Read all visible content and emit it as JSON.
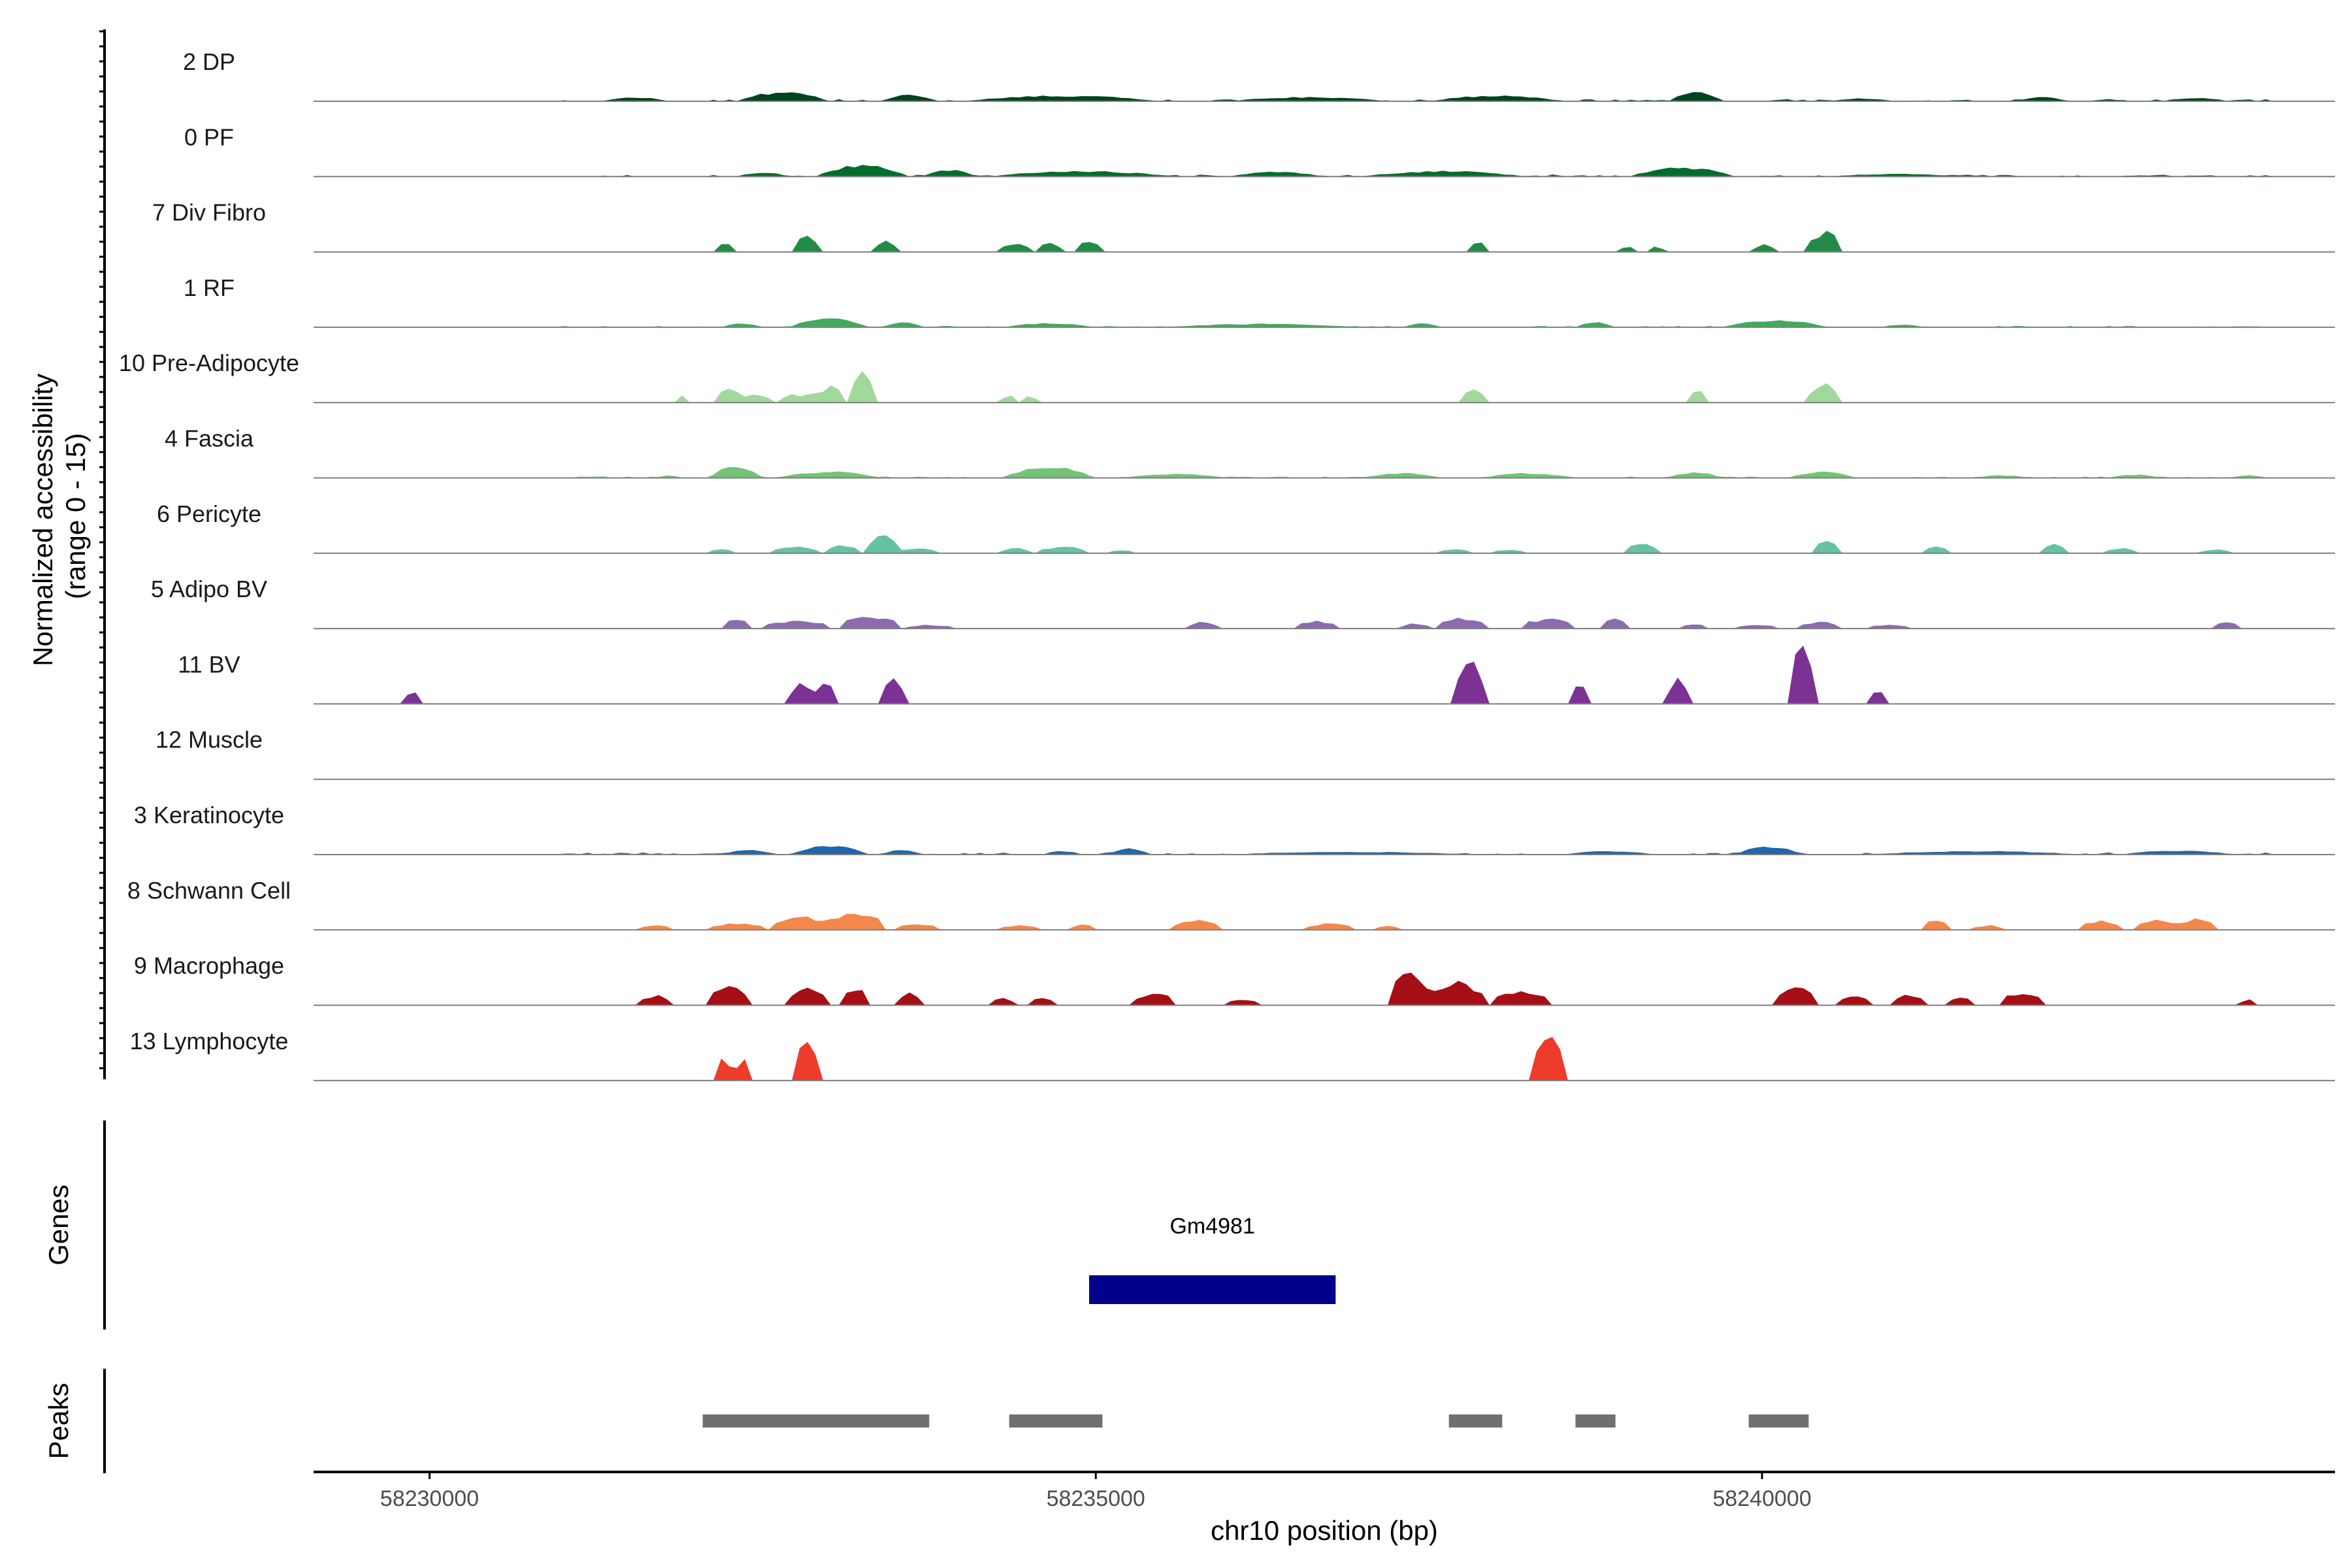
{
  "chart_data": {
    "type": "area",
    "title": "",
    "region": "chr10",
    "xlabel": "chr10 position (bp)",
    "ylabel": "Normalized accessibility\n(range 0 - 15)",
    "ylabel_lines": [
      "Normalized accessibility",
      "(range 0 - 15)"
    ],
    "xlim": [
      58229130,
      58244300
    ],
    "ylim": [
      0,
      15
    ],
    "x_ticks": [
      58230000,
      58235000,
      58240000
    ],
    "x_tick_labels": [
      "58230000",
      "58235000",
      "58240000"
    ],
    "grid": false,
    "legend": "none",
    "panels": {
      "genes_label": "Genes",
      "peaks_label": "Peaks"
    },
    "tracks": [
      {
        "name": "2 DP",
        "color": "#00441b",
        "dense": true,
        "base": 0.3,
        "peaks": [
          [
            58231300,
            58231800,
            0.6
          ],
          [
            58232300,
            58233000,
            1.3
          ],
          [
            58233400,
            58233800,
            1.0
          ],
          [
            58234000,
            58235500,
            0.8
          ],
          [
            58236000,
            58237200,
            0.6
          ],
          [
            58237500,
            58238500,
            0.8
          ],
          [
            58239300,
            58239700,
            1.4
          ],
          [
            58240500,
            58241000,
            0.4
          ],
          [
            58241900,
            58242300,
            0.6
          ],
          [
            58243000,
            58243500,
            0.5
          ]
        ]
      },
      {
        "name": "0 PF",
        "color": "#006d2c",
        "dense": true,
        "base": 0.3,
        "peaks": [
          [
            58232300,
            58232700,
            0.6
          ],
          [
            58232900,
            58233600,
            1.6
          ],
          [
            58233700,
            58234100,
            1.0
          ],
          [
            58234200,
            58235600,
            0.8
          ],
          [
            58236000,
            58236700,
            0.7
          ],
          [
            58237000,
            58238200,
            0.8
          ],
          [
            58239000,
            58239800,
            1.3
          ],
          [
            58240500,
            58241500,
            0.4
          ]
        ]
      },
      {
        "name": "7 Div Fibro",
        "color": "#238b45",
        "dense": false,
        "base": 0,
        "peaks": [
          [
            58232150,
            58232300,
            1.6
          ],
          [
            58232750,
            58232900,
            2.8
          ],
          [
            58233350,
            58233500,
            1.7
          ],
          [
            58234300,
            58234500,
            1.3
          ],
          [
            58234550,
            58234750,
            1.3
          ],
          [
            58234850,
            58235050,
            1.6
          ],
          [
            58237800,
            58237950,
            1.8
          ],
          [
            58238950,
            58239050,
            1.0
          ],
          [
            58239150,
            58239250,
            1.0
          ],
          [
            58239950,
            58240100,
            1.2
          ],
          [
            58240350,
            58240600,
            3.0
          ]
        ]
      },
      {
        "name": "1 RF",
        "color": "#41ab5d",
        "dense": true,
        "base": 0.2,
        "peaks": [
          [
            58232200,
            58232500,
            0.6
          ],
          [
            58232700,
            58233300,
            1.3
          ],
          [
            58233400,
            58233700,
            0.8
          ],
          [
            58234300,
            58235000,
            0.6
          ],
          [
            58235500,
            58237000,
            0.5
          ],
          [
            58237300,
            58237600,
            0.6
          ],
          [
            58238600,
            58238900,
            0.7
          ],
          [
            58239700,
            58240500,
            1.0
          ],
          [
            58240900,
            58241200,
            0.4
          ]
        ]
      },
      {
        "name": "10 Pre-Adipocyte",
        "color": "#a1d99b",
        "dense": false,
        "base": 0,
        "peaks": [
          [
            58231850,
            58231950,
            1.2
          ],
          [
            58232150,
            58232350,
            2.2
          ],
          [
            58232350,
            58232550,
            1.4
          ],
          [
            58232650,
            58232800,
            1.3
          ],
          [
            58232800,
            58232950,
            1.7
          ],
          [
            58232950,
            58233100,
            2.8
          ],
          [
            58233150,
            58233350,
            5.0
          ],
          [
            58234300,
            58234400,
            1.2
          ],
          [
            58234450,
            58234550,
            1.2
          ],
          [
            58237750,
            58237900,
            2.5
          ],
          [
            58239450,
            58239600,
            2.2
          ],
          [
            58240350,
            58240600,
            2.7
          ]
        ]
      },
      {
        "name": "4 Fascia",
        "color": "#74c476",
        "dense": true,
        "base": 0.2,
        "peaks": [
          [
            58231700,
            58231900,
            0.4
          ],
          [
            58232100,
            58232500,
            1.7
          ],
          [
            58232600,
            58233400,
            0.9
          ],
          [
            58234300,
            58235000,
            1.6
          ],
          [
            58235200,
            58236000,
            0.6
          ],
          [
            58237000,
            58237600,
            0.7
          ],
          [
            58237900,
            58238600,
            0.7
          ],
          [
            58239300,
            58239700,
            0.8
          ],
          [
            58240200,
            58240700,
            0.9
          ],
          [
            58241600,
            58242000,
            0.4
          ],
          [
            58242600,
            58243000,
            0.5
          ],
          [
            58243500,
            58243800,
            0.4
          ]
        ]
      },
      {
        "name": "6 Pericyte",
        "color": "#66c2a4",
        "dense": false,
        "base": 0,
        "peaks": [
          [
            58232100,
            58232300,
            0.7
          ],
          [
            58232600,
            58232900,
            1.0
          ],
          [
            58233000,
            58233200,
            1.3
          ],
          [
            58233300,
            58233500,
            2.8
          ],
          [
            58233500,
            58233800,
            0.8
          ],
          [
            58234300,
            58234500,
            0.8
          ],
          [
            58234600,
            58234900,
            1.1
          ],
          [
            58235100,
            58235300,
            0.5
          ],
          [
            58237600,
            58237800,
            0.7
          ],
          [
            58238000,
            58238200,
            0.6
          ],
          [
            58239000,
            58239200,
            1.6
          ],
          [
            58240400,
            58240600,
            2.0
          ],
          [
            58241200,
            58241400,
            1.0
          ],
          [
            58242100,
            58242300,
            1.4
          ],
          [
            58242600,
            58242800,
            0.8
          ],
          [
            58243300,
            58243500,
            0.6
          ]
        ]
      },
      {
        "name": "5 Adipo BV",
        "color": "#8c6bb1",
        "dense": false,
        "base": 0,
        "peaks": [
          [
            58232200,
            58232400,
            1.6
          ],
          [
            58232500,
            58233000,
            1.2
          ],
          [
            58233100,
            58233500,
            2.0
          ],
          [
            58233600,
            58233900,
            0.6
          ],
          [
            58235700,
            58235900,
            1.0
          ],
          [
            58236500,
            58236800,
            1.1
          ],
          [
            58237300,
            58237500,
            0.8
          ],
          [
            58237600,
            58237900,
            1.6
          ],
          [
            58238200,
            58238600,
            1.5
          ],
          [
            58238800,
            58239000,
            1.7
          ],
          [
            58239400,
            58239600,
            0.7
          ],
          [
            58239800,
            58240100,
            0.6
          ],
          [
            58240300,
            58240600,
            1.0
          ],
          [
            58240800,
            58241100,
            0.6
          ],
          [
            58243400,
            58243600,
            1.1
          ]
        ]
      },
      {
        "name": "11 BV",
        "color": "#7b3294",
        "dense": false,
        "base": 0,
        "peaks": [
          [
            58229800,
            58229950,
            1.8
          ],
          [
            58232700,
            58232900,
            3.2
          ],
          [
            58232900,
            58233050,
            3.6
          ],
          [
            58233400,
            58233550,
            3.7
          ],
          [
            58237700,
            58237900,
            7.0
          ],
          [
            58238550,
            58238700,
            3.3
          ],
          [
            58239300,
            58239450,
            3.7
          ],
          [
            58240200,
            58240400,
            9.0
          ],
          [
            58240800,
            58240950,
            2.0
          ]
        ]
      },
      {
        "name": "12 Muscle",
        "color": "#999999",
        "dense": false,
        "base": 0,
        "peaks": []
      },
      {
        "name": "3 Keratinocyte",
        "color": "#2166ac",
        "dense": true,
        "base": 0.3,
        "peaks": [
          [
            58232200,
            58232600,
            0.7
          ],
          [
            58232700,
            58233300,
            1.3
          ],
          [
            58233400,
            58233700,
            0.7
          ],
          [
            58234600,
            58234900,
            0.5
          ],
          [
            58235100,
            58235400,
            1.0
          ],
          [
            58236000,
            58237800,
            0.4
          ],
          [
            58238500,
            58239200,
            0.5
          ],
          [
            58239800,
            58240300,
            1.2
          ],
          [
            58240800,
            58242400,
            0.5
          ],
          [
            58242700,
            58243500,
            0.6
          ]
        ]
      },
      {
        "name": "8 Schwann Cell",
        "color": "#f4874b",
        "dense": false,
        "base": 0,
        "peaks": [
          [
            58231600,
            58231800,
            0.8
          ],
          [
            58232100,
            58232500,
            1.0
          ],
          [
            58232600,
            58233000,
            2.0
          ],
          [
            58233000,
            58233400,
            2.6
          ],
          [
            58233500,
            58233800,
            1.0
          ],
          [
            58234300,
            58234600,
            0.7
          ],
          [
            58234800,
            58235000,
            0.8
          ],
          [
            58235600,
            58235900,
            1.5
          ],
          [
            58236600,
            58236900,
            1.0
          ],
          [
            58237100,
            58237300,
            0.6
          ],
          [
            58241200,
            58241400,
            1.6
          ],
          [
            58241600,
            58241800,
            0.7
          ],
          [
            58242400,
            58242700,
            1.4
          ],
          [
            58242800,
            58243100,
            1.6
          ],
          [
            58243100,
            58243400,
            1.6
          ]
        ]
      },
      {
        "name": "9 Macrophage",
        "color": "#a50f15",
        "dense": false,
        "base": 0,
        "peaks": [
          [
            58231600,
            58231800,
            1.6
          ],
          [
            58232100,
            58232400,
            2.8
          ],
          [
            58232700,
            58233000,
            2.6
          ],
          [
            58233100,
            58233300,
            2.6
          ],
          [
            58233500,
            58233700,
            1.8
          ],
          [
            58234200,
            58234400,
            1.0
          ],
          [
            58234500,
            58234700,
            1.2
          ],
          [
            58235300,
            58235600,
            1.8
          ],
          [
            58236000,
            58236200,
            1.0
          ],
          [
            58237200,
            58237500,
            5.0
          ],
          [
            58237500,
            58237900,
            3.5
          ],
          [
            58238000,
            58238400,
            2.2
          ],
          [
            58240100,
            58240400,
            2.8
          ],
          [
            58240600,
            58240800,
            1.5
          ],
          [
            58241000,
            58241200,
            1.8
          ],
          [
            58241400,
            58241600,
            1.2
          ],
          [
            58241800,
            58242100,
            2.0
          ],
          [
            58243600,
            58243700,
            1.0
          ]
        ]
      },
      {
        "name": "13 Lymphocyte",
        "color": "#ef3b2c",
        "dense": false,
        "base": 0,
        "peaks": [
          [
            58232150,
            58232250,
            3.5
          ],
          [
            58232300,
            58232400,
            3.5
          ],
          [
            58232750,
            58232900,
            7.0
          ],
          [
            58238300,
            58238500,
            7.0
          ]
        ]
      }
    ],
    "genes": [
      {
        "name": "Gm4981",
        "start": 58234950,
        "end": 58236800,
        "color": "#00008b"
      }
    ],
    "peak_regions": [
      {
        "start": 58232050,
        "end": 58233750
      },
      {
        "start": 58234350,
        "end": 58235050
      },
      {
        "start": 58237650,
        "end": 58238050
      },
      {
        "start": 58238600,
        "end": 58238900
      },
      {
        "start": 58239900,
        "end": 58240350
      }
    ],
    "colors": {
      "axis": "#000000",
      "baseline": "#7f7f7f",
      "peak_bar": "#707070"
    }
  }
}
